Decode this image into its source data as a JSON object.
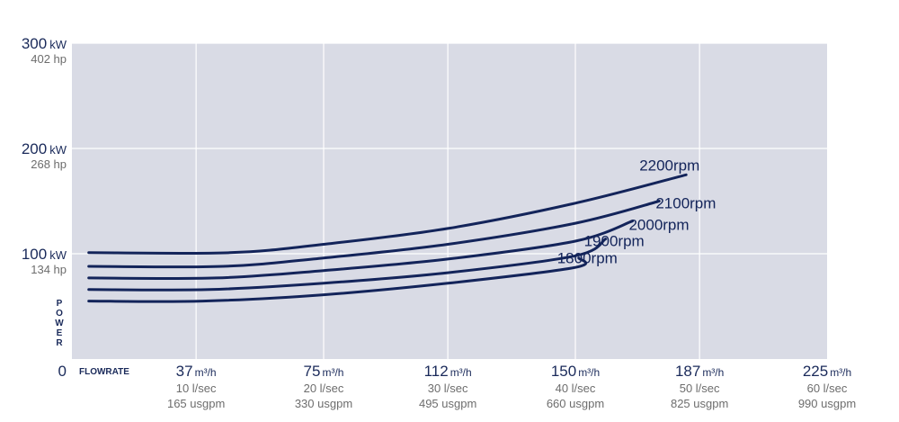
{
  "chart_data": {
    "type": "line",
    "x_unit": "m³/h",
    "xlim": [
      0,
      225
    ],
    "ylim": [
      0,
      300
    ],
    "grid": true,
    "y_ticks": [
      {
        "value": 100,
        "main": "100",
        "unit": "kW",
        "sub": "134 hp"
      },
      {
        "value": 200,
        "main": "200",
        "unit": "kW",
        "sub": "268 hp"
      },
      {
        "value": 300,
        "main": "300",
        "unit": "kW",
        "sub": "402 hp"
      }
    ],
    "y_zero_label": "0",
    "y_axis_label": "POWER",
    "x_axis_label": "FLOWRATE",
    "x_ticks": [
      {
        "value": 37,
        "main": "37",
        "unit": "m³/h",
        "sub1": "10 l/sec",
        "sub2": "165 usgpm"
      },
      {
        "value": 75,
        "main": "75",
        "unit": "m³/h",
        "sub1": "20 l/sec",
        "sub2": "330 usgpm"
      },
      {
        "value": 112,
        "main": "112",
        "unit": "m³/h",
        "sub1": "30 l/sec",
        "sub2": "495 usgpm"
      },
      {
        "value": 150,
        "main": "150",
        "unit": "m³/h",
        "sub1": "40 l/sec",
        "sub2": "660 usgpm"
      },
      {
        "value": 187,
        "main": "187",
        "unit": "m³/h",
        "sub1": "50 l/sec",
        "sub2": "825 usgpm"
      },
      {
        "value": 225,
        "main": "225",
        "unit": "m³/h",
        "sub1": "60 l/sec",
        "sub2": "990 usgpm"
      }
    ],
    "series": [
      {
        "name": "2200rpm",
        "points": [
          [
            5,
            101
          ],
          [
            47,
            101
          ],
          [
            75,
            109
          ],
          [
            112,
            124
          ],
          [
            150,
            148
          ],
          [
            183,
            175
          ]
        ]
      },
      {
        "name": "2100rpm",
        "points": [
          [
            5,
            88
          ],
          [
            45,
            88
          ],
          [
            75,
            96
          ],
          [
            112,
            109
          ],
          [
            150,
            129
          ],
          [
            175,
            150
          ]
        ]
      },
      {
        "name": "2000rpm",
        "points": [
          [
            5,
            77
          ],
          [
            43,
            77
          ],
          [
            75,
            84
          ],
          [
            112,
            95
          ],
          [
            150,
            112
          ],
          [
            167,
            131
          ]
        ]
      },
      {
        "name": "1900rpm",
        "points": [
          [
            5,
            66
          ],
          [
            41,
            66
          ],
          [
            75,
            72
          ],
          [
            112,
            82
          ],
          [
            150,
            98
          ],
          [
            159,
            114
          ]
        ]
      },
      {
        "name": "1800rpm",
        "points": [
          [
            5,
            55
          ],
          [
            39,
            55
          ],
          [
            75,
            61
          ],
          [
            112,
            72
          ],
          [
            150,
            87
          ],
          [
            151,
            96
          ]
        ]
      }
    ],
    "colors": {
      "plot_bg": "#d9dbe5",
      "grid": "#ffffff",
      "line": "#13245a",
      "main_text": "#1a2a5a",
      "sub_text": "#6d6d6d"
    }
  }
}
